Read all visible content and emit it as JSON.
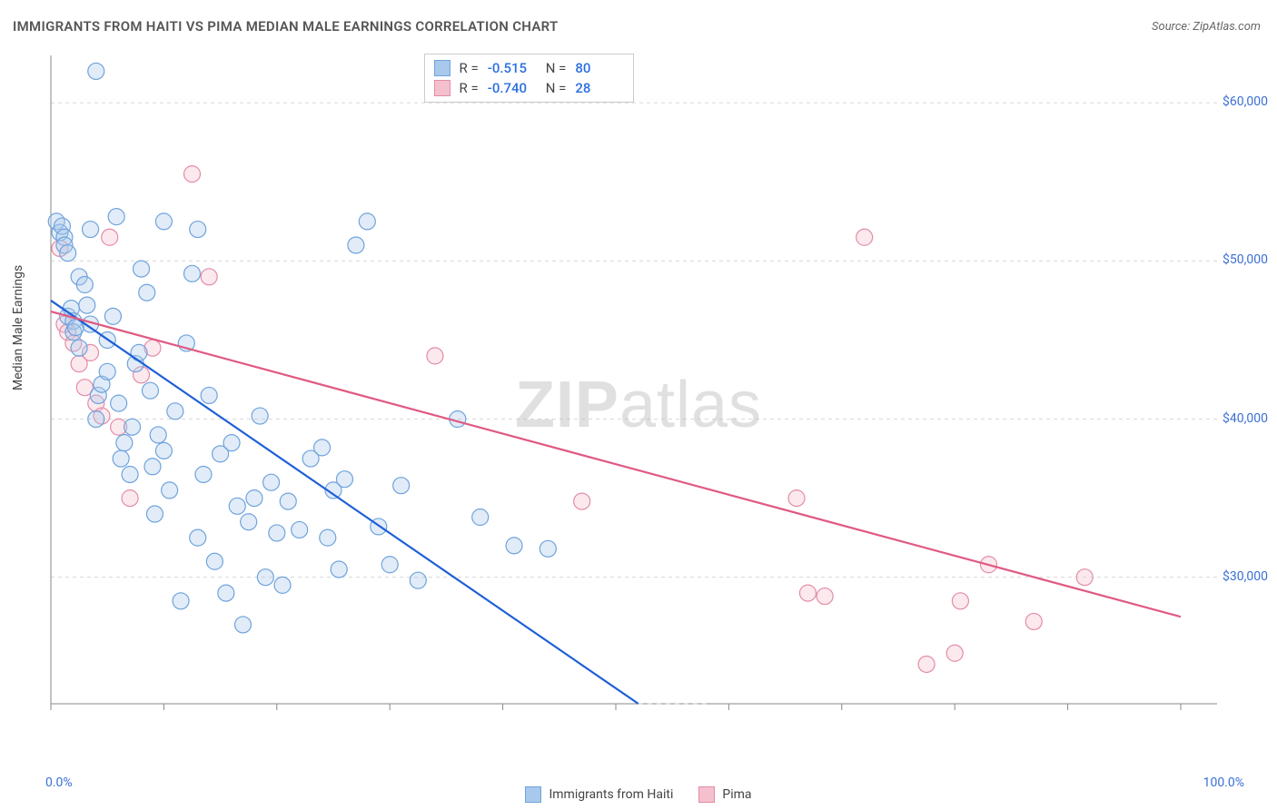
{
  "title": "IMMIGRANTS FROM HAITI VS PIMA MEDIAN MALE EARNINGS CORRELATION CHART",
  "source": "Source: ZipAtlas.com",
  "ylabel": "Median Male Earnings",
  "watermark_a": "ZIP",
  "watermark_b": "atlas",
  "chart": {
    "type": "scatter",
    "xlim": [
      0,
      100
    ],
    "ylim": [
      22000,
      63000
    ],
    "x_ticks": [
      0,
      10,
      20,
      30,
      40,
      50,
      60,
      70,
      80,
      90,
      100
    ],
    "y_gridlines": [
      30000,
      40000,
      50000,
      60000
    ],
    "y_tick_labels": [
      "$30,000",
      "$40,000",
      "$50,000",
      "$60,000"
    ],
    "x_axis_labels": {
      "min": "0.0%",
      "max": "100.0%"
    },
    "background_color": "#ffffff",
    "grid_color": "#d8d8d8",
    "axis_color": "#888888",
    "marker_radius": 9,
    "marker_stroke_width": 1.2,
    "marker_fill_opacity": 0.35,
    "line_width": 2.2
  },
  "series": [
    {
      "name": "Immigrants from Haiti",
      "key": "haiti",
      "color_fill": "#a8c8ec",
      "color_stroke": "#6fa3dd",
      "line_color": "#1e5fd6",
      "R": "-0.515",
      "N": "80",
      "regression": {
        "x1": 0,
        "y1": 47500,
        "x2": 52,
        "y2": 22000
      },
      "regression_ext": {
        "x1": 52,
        "y1": 22000,
        "x2": 58,
        "y2": 19000
      },
      "points": [
        [
          0.5,
          52500
        ],
        [
          0.8,
          51800
        ],
        [
          1.0,
          52200
        ],
        [
          1.2,
          51500
        ],
        [
          1.2,
          51000
        ],
        [
          1.5,
          50500
        ],
        [
          1.5,
          46500
        ],
        [
          1.8,
          47000
        ],
        [
          2.0,
          46200
        ],
        [
          2.0,
          45500
        ],
        [
          2.2,
          45800
        ],
        [
          2.5,
          44500
        ],
        [
          2.5,
          49000
        ],
        [
          3.0,
          48500
        ],
        [
          3.2,
          47200
        ],
        [
          3.5,
          46000
        ],
        [
          3.5,
          52000
        ],
        [
          4.0,
          62000
        ],
        [
          4.0,
          40000
        ],
        [
          4.2,
          41500
        ],
        [
          4.5,
          42200
        ],
        [
          5.0,
          43000
        ],
        [
          5.0,
          45000
        ],
        [
          5.5,
          46500
        ],
        [
          5.8,
          52800
        ],
        [
          6.0,
          41000
        ],
        [
          6.2,
          37500
        ],
        [
          6.5,
          38500
        ],
        [
          7.0,
          36500
        ],
        [
          7.2,
          39500
        ],
        [
          7.5,
          43500
        ],
        [
          7.8,
          44200
        ],
        [
          8.0,
          49500
        ],
        [
          8.5,
          48000
        ],
        [
          8.8,
          41800
        ],
        [
          9.0,
          37000
        ],
        [
          9.2,
          34000
        ],
        [
          9.5,
          39000
        ],
        [
          10.0,
          52500
        ],
        [
          10.0,
          38000
        ],
        [
          10.5,
          35500
        ],
        [
          11.0,
          40500
        ],
        [
          11.5,
          28500
        ],
        [
          12.0,
          44800
        ],
        [
          12.5,
          49200
        ],
        [
          13.0,
          32500
        ],
        [
          13.0,
          52000
        ],
        [
          13.5,
          36500
        ],
        [
          14.0,
          41500
        ],
        [
          14.5,
          31000
        ],
        [
          15.0,
          37800
        ],
        [
          15.5,
          29000
        ],
        [
          16.0,
          38500
        ],
        [
          16.5,
          34500
        ],
        [
          17.0,
          27000
        ],
        [
          17.5,
          33500
        ],
        [
          18.0,
          35000
        ],
        [
          18.5,
          40200
        ],
        [
          19.0,
          30000
        ],
        [
          19.5,
          36000
        ],
        [
          20.0,
          32800
        ],
        [
          20.5,
          29500
        ],
        [
          21.0,
          34800
        ],
        [
          22.0,
          33000
        ],
        [
          23.0,
          37500
        ],
        [
          24.0,
          38200
        ],
        [
          24.5,
          32500
        ],
        [
          25.0,
          35500
        ],
        [
          25.5,
          30500
        ],
        [
          26.0,
          36200
        ],
        [
          27.0,
          51000
        ],
        [
          28.0,
          52500
        ],
        [
          29.0,
          33200
        ],
        [
          30.0,
          30800
        ],
        [
          31.0,
          35800
        ],
        [
          32.5,
          29800
        ],
        [
          36.0,
          40000
        ],
        [
          38.0,
          33800
        ],
        [
          41.0,
          32000
        ],
        [
          44.0,
          31800
        ]
      ]
    },
    {
      "name": "Pima",
      "key": "pima",
      "color_fill": "#f4c0ce",
      "color_stroke": "#e38ca5",
      "line_color": "#e05a82",
      "R": "-0.740",
      "N": "28",
      "regression": {
        "x1": 0,
        "y1": 46800,
        "x2": 100,
        "y2": 27500
      },
      "points": [
        [
          0.8,
          50800
        ],
        [
          1.2,
          46000
        ],
        [
          1.5,
          45500
        ],
        [
          2.0,
          44800
        ],
        [
          2.5,
          43500
        ],
        [
          3.0,
          42000
        ],
        [
          3.5,
          44200
        ],
        [
          4.0,
          41000
        ],
        [
          4.5,
          40200
        ],
        [
          5.2,
          51500
        ],
        [
          6.0,
          39500
        ],
        [
          7.0,
          35000
        ],
        [
          8.0,
          42800
        ],
        [
          9.0,
          44500
        ],
        [
          12.5,
          55500
        ],
        [
          14.0,
          49000
        ],
        [
          34.0,
          44000
        ],
        [
          47.0,
          34800
        ],
        [
          66.0,
          35000
        ],
        [
          67.0,
          29000
        ],
        [
          68.5,
          28800
        ],
        [
          72.0,
          51500
        ],
        [
          77.5,
          24500
        ],
        [
          80.0,
          25200
        ],
        [
          80.5,
          28500
        ],
        [
          83.0,
          30800
        ],
        [
          87.0,
          27200
        ],
        [
          91.5,
          30000
        ]
      ]
    }
  ],
  "legend_stats": {
    "r_label": "R =",
    "n_label": "N ="
  },
  "bottom_legend": {
    "haiti": "Immigrants from Haiti",
    "pima": "Pima"
  }
}
